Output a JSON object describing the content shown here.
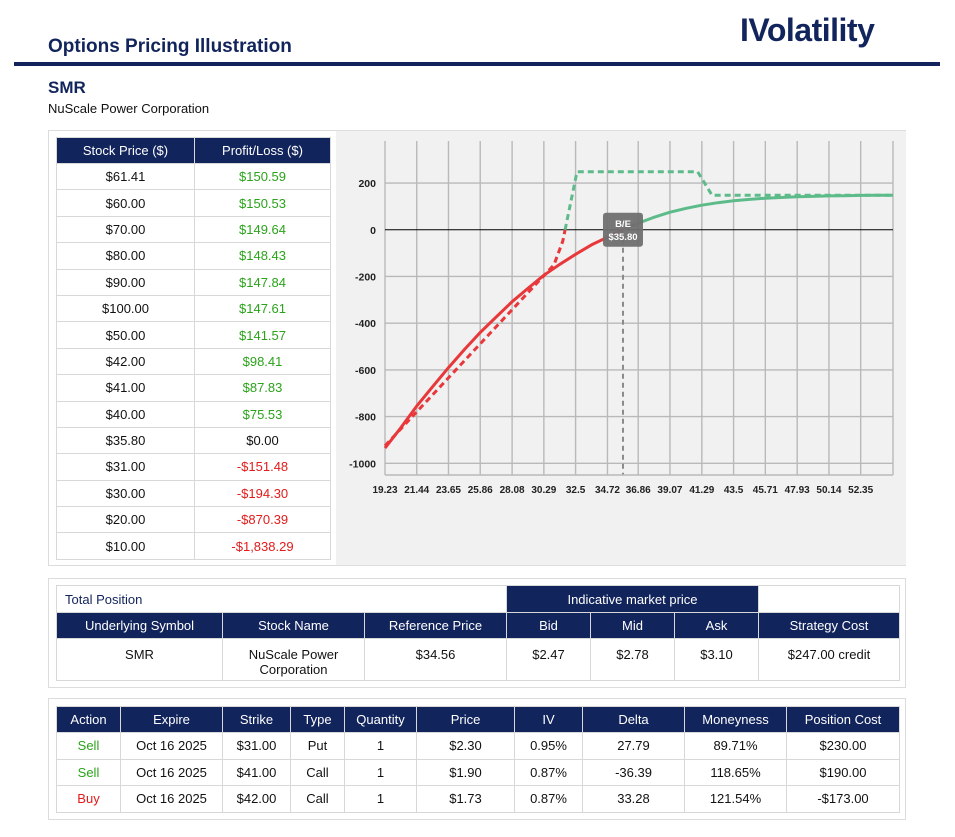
{
  "header": {
    "title": "Options Pricing Illustration",
    "brand": "IVolatility"
  },
  "stock": {
    "symbol": "SMR",
    "name": "NuScale Power Corporation"
  },
  "price_table": {
    "headers": [
      "Stock Price ($)",
      "Profit/Loss ($)"
    ],
    "rows": [
      {
        "price": "$61.41",
        "pl": "$150.59",
        "sign": "pos"
      },
      {
        "price": "$60.00",
        "pl": "$150.53",
        "sign": "pos"
      },
      {
        "price": "$70.00",
        "pl": "$149.64",
        "sign": "pos"
      },
      {
        "price": "$80.00",
        "pl": "$148.43",
        "sign": "pos"
      },
      {
        "price": "$90.00",
        "pl": "$147.84",
        "sign": "pos"
      },
      {
        "price": "$100.00",
        "pl": "$147.61",
        "sign": "pos"
      },
      {
        "price": "$50.00",
        "pl": "$141.57",
        "sign": "pos"
      },
      {
        "price": "$42.00",
        "pl": "$98.41",
        "sign": "pos"
      },
      {
        "price": "$41.00",
        "pl": "$87.83",
        "sign": "pos"
      },
      {
        "price": "$40.00",
        "pl": "$75.53",
        "sign": "pos"
      },
      {
        "price": "$35.80",
        "pl": "$0.00",
        "sign": "zero"
      },
      {
        "price": "$31.00",
        "pl": "-$151.48",
        "sign": "neg"
      },
      {
        "price": "$30.00",
        "pl": "-$194.30",
        "sign": "neg"
      },
      {
        "price": "$20.00",
        "pl": "-$870.39",
        "sign": "neg"
      },
      {
        "price": "$10.00",
        "pl": "-$1,838.29",
        "sign": "neg"
      }
    ]
  },
  "chart_data": {
    "type": "line",
    "title": "",
    "xlabel": "",
    "ylabel": "",
    "x_ticks": [
      "19.23",
      "21.44",
      "23.65",
      "25.86",
      "28.08",
      "30.29",
      "32.5",
      "34.72",
      "36.86",
      "39.07",
      "41.29",
      "43.5",
      "45.71",
      "47.93",
      "50.14",
      "52.35"
    ],
    "y_ticks": [
      200,
      0,
      -200,
      -400,
      -600,
      -800,
      -1000
    ],
    "xlim": [
      19.23,
      54.6
    ],
    "ylim": [
      -1050,
      380
    ],
    "grid": true,
    "breakeven": {
      "x": 35.8,
      "label_top": "B/E",
      "label_bottom": "$35.80"
    },
    "colors": {
      "loss": "#e8383b",
      "profit": "#5dbb8a",
      "breakeven": "#8a8a8a"
    },
    "series": [
      {
        "style": "solid",
        "points": [
          [
            19.23,
            -935
          ],
          [
            20.3,
            -850
          ],
          [
            21.44,
            -755
          ],
          [
            22.5,
            -675
          ],
          [
            23.65,
            -590
          ],
          [
            24.8,
            -510
          ],
          [
            25.86,
            -440
          ],
          [
            27,
            -372
          ],
          [
            28.08,
            -308
          ],
          [
            29.2,
            -250
          ],
          [
            30.29,
            -195
          ],
          [
            31.4,
            -148
          ],
          [
            32.5,
            -105
          ],
          [
            33.6,
            -65
          ],
          [
            34.72,
            -32
          ],
          [
            35.8,
            0
          ],
          [
            36.86,
            28
          ],
          [
            37.9,
            52
          ],
          [
            39.07,
            75
          ],
          [
            40.2,
            92
          ],
          [
            41.29,
            105
          ],
          [
            42.4,
            116
          ],
          [
            43.5,
            124
          ],
          [
            44.6,
            130
          ],
          [
            45.71,
            135
          ],
          [
            46.8,
            138
          ],
          [
            47.93,
            141
          ],
          [
            49,
            143
          ],
          [
            50.14,
            145
          ],
          [
            51.2,
            146
          ],
          [
            52.35,
            147
          ],
          [
            53.5,
            148
          ],
          [
            54.6,
            148
          ]
        ]
      },
      {
        "style": "dashed",
        "points": [
          [
            19.23,
            -925
          ],
          [
            31.0,
            -150
          ],
          [
            31.6,
            -50
          ],
          [
            32.6,
            248
          ],
          [
            41.0,
            248
          ],
          [
            42.0,
            148
          ],
          [
            54.6,
            148
          ]
        ]
      }
    ]
  },
  "total_position": {
    "label": "Total Position",
    "market_label": "Indicative market price",
    "headers": [
      "Underlying Symbol",
      "Stock Name",
      "Reference Price",
      "Bid",
      "Mid",
      "Ask",
      "Strategy Cost"
    ],
    "row": {
      "symbol": "SMR",
      "stock_name": "NuScale Power Corporation",
      "ref_price": "$34.56",
      "bid": "$2.47",
      "mid": "$2.78",
      "ask": "$3.10",
      "strategy_cost": "$247.00 credit"
    }
  },
  "legs": {
    "headers": [
      "Action",
      "Expire",
      "Strike",
      "Type",
      "Quantity",
      "Price",
      "IV",
      "Delta",
      "Moneyness",
      "Position Cost"
    ],
    "rows": [
      {
        "action": "Sell",
        "expire": "Oct 16 2025",
        "strike": "$31.00",
        "type": "Put",
        "qty": "1",
        "price": "$2.30",
        "iv": "0.95%",
        "delta": "27.79",
        "moneyness": "89.71%",
        "cost": "$230.00"
      },
      {
        "action": "Sell",
        "expire": "Oct 16 2025",
        "strike": "$41.00",
        "type": "Call",
        "qty": "1",
        "price": "$1.90",
        "iv": "0.87%",
        "delta": "-36.39",
        "moneyness": "118.65%",
        "cost": "$190.00"
      },
      {
        "action": "Buy",
        "expire": "Oct 16 2025",
        "strike": "$42.00",
        "type": "Call",
        "qty": "1",
        "price": "$1.73",
        "iv": "0.87%",
        "delta": "33.28",
        "moneyness": "121.54%",
        "cost": "-$173.00"
      }
    ]
  }
}
